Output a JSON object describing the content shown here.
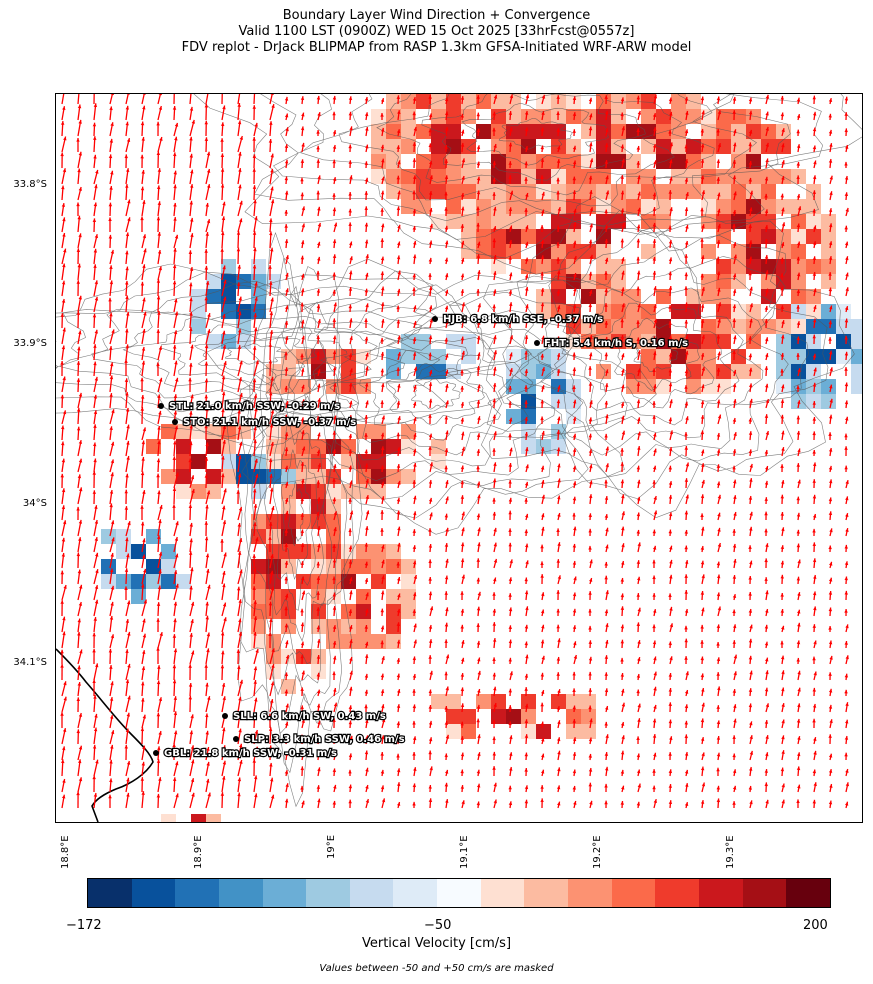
{
  "title": {
    "line1": "Boundary Layer Wind Direction + Convergence",
    "line2": "Valid 1100 LST (0900Z) WED 15 Oct 2025 [33hrFcst@0557z]",
    "line3": "FDV replot - DrJack BLIPMAP from RASP 1.3km GFSA-Initiated WRF-ARW model"
  },
  "map": {
    "lat_labels": [
      "33.8°S",
      "33.9°S",
      "34°S",
      "34.1°S"
    ],
    "lon_labels": [
      "18.8°E",
      "18.9°E",
      "19°E",
      "19.1°E",
      "19.2°E",
      "19.3°E"
    ],
    "vector_color": "#ff0000",
    "stations": [
      {
        "code": "HJB",
        "text": "HJB: 6.8 km/h SSE, -0.37 m/s"
      },
      {
        "code": "FHT",
        "text": "FHT: 5.4 km/h S, 0.16 m/s"
      },
      {
        "code": "STL",
        "text": "STL: 21.0 km/h SSW, -0.29 m/s"
      },
      {
        "code": "STO",
        "text": "STO: 21.1 km/h SSW, -0.37 m/s"
      },
      {
        "code": "SLL",
        "text": "SLL: 6.6 km/h SW, 0.43 m/s"
      },
      {
        "code": "SLP",
        "text": "SLP: 3.3 km/h SSW, 0.46 m/s"
      },
      {
        "code": "GBL",
        "text": "GBL: 21.8 km/h SSW, -0.31 m/s"
      }
    ]
  },
  "colorbar": {
    "min_label": "−172",
    "mid_label": "−50",
    "max_label": "200",
    "label": "Vertical Velocity [cm/s]",
    "colors": [
      "#08306b",
      "#08519c",
      "#2171b5",
      "#4292c6",
      "#6baed6",
      "#9ecae1",
      "#c6dbef",
      "#deebf7",
      "#f7fbff",
      "#fee0d2",
      "#fcbba1",
      "#fc9272",
      "#fb6a4a",
      "#ef3b2c",
      "#cb181d",
      "#a50f15",
      "#67000d"
    ]
  },
  "note": "Values between -50 and +50 cm/s are masked"
}
